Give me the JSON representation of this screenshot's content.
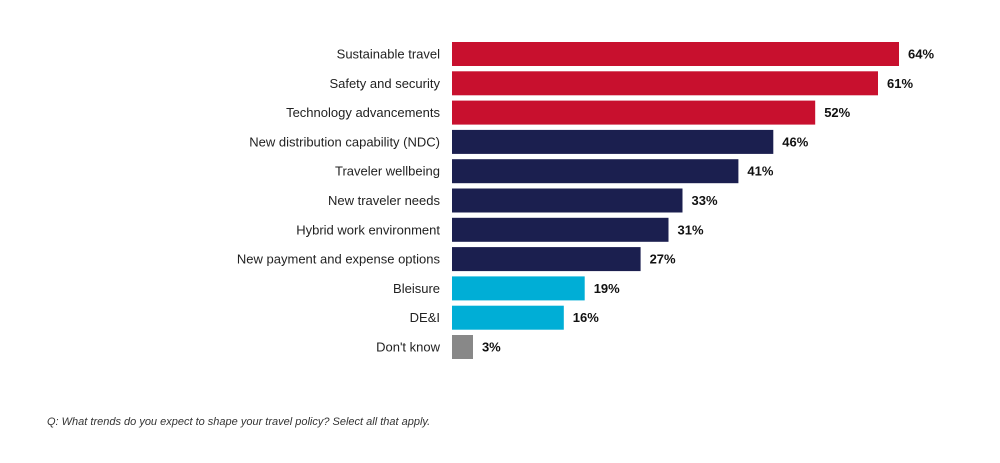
{
  "chart_data": {
    "type": "bar",
    "orientation": "horizontal",
    "categories": [
      "Sustainable travel",
      "Safety and security",
      "Technology advancements",
      "New distribution capability (NDC)",
      "Traveler wellbeing",
      "New traveler needs",
      "Hybrid work environment",
      "New payment and expense options",
      "Bleisure",
      "DE&I",
      "Don't know"
    ],
    "values": [
      64,
      61,
      52,
      46,
      41,
      33,
      31,
      27,
      19,
      16,
      3
    ],
    "value_labels": [
      "64%",
      "61%",
      "52%",
      "46%",
      "41%",
      "33%",
      "31%",
      "27%",
      "19%",
      "16%",
      "3%"
    ],
    "bar_colors": [
      "#c8102e",
      "#c8102e",
      "#c8102e",
      "#1b1f4f",
      "#1b1f4f",
      "#1b1f4f",
      "#1b1f4f",
      "#1b1f4f",
      "#00aed6",
      "#00aed6",
      "#888888"
    ],
    "unit": "%",
    "xlim": [
      0,
      64
    ],
    "grid": false,
    "title": "",
    "xlabel": "",
    "ylabel": ""
  },
  "footnote": "Q: What trends do you expect to shape your travel policy? Select all that apply."
}
